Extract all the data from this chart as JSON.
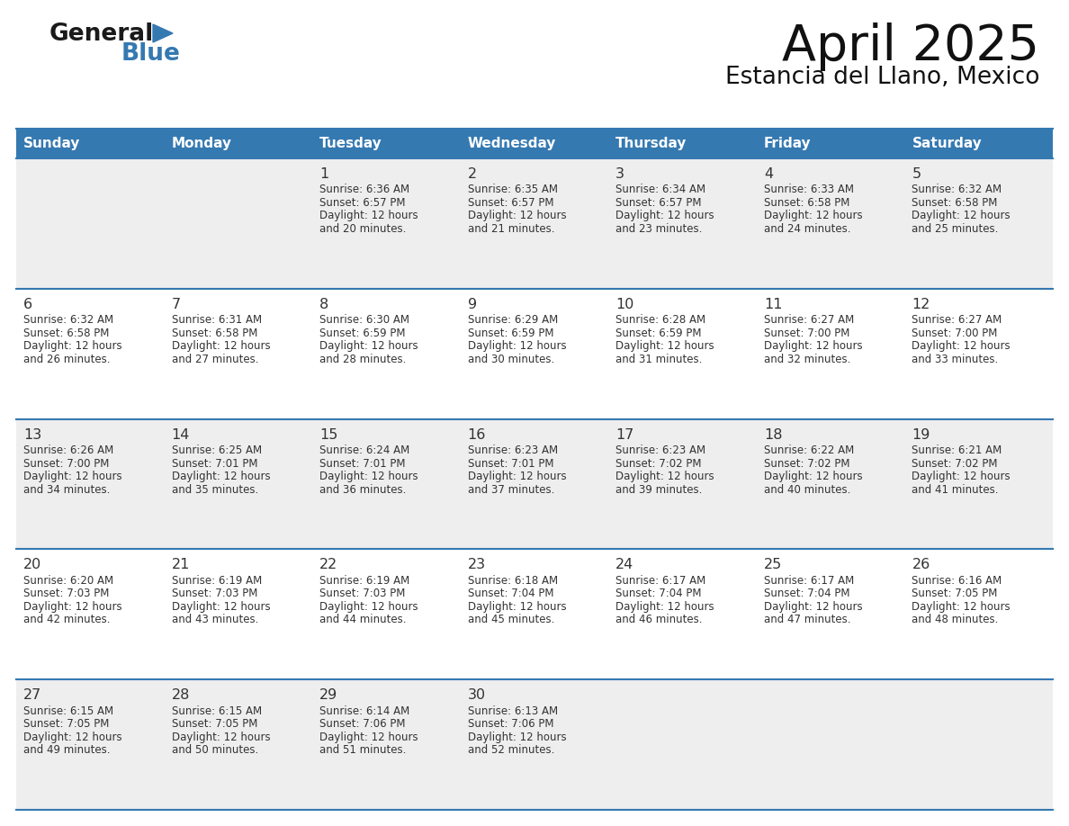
{
  "title": "April 2025",
  "subtitle": "Estancia del Llano, Mexico",
  "header_color": "#3579b1",
  "header_text_color": "#ffffff",
  "cell_bg_row0": "#eeeeee",
  "cell_bg_row1": "#ffffff",
  "border_color": "#3579b1",
  "text_color": "#333333",
  "days_of_week": [
    "Sunday",
    "Monday",
    "Tuesday",
    "Wednesday",
    "Thursday",
    "Friday",
    "Saturday"
  ],
  "weeks": [
    [
      {
        "day": "",
        "sunrise": "",
        "sunset": "",
        "daylight": ""
      },
      {
        "day": "",
        "sunrise": "",
        "sunset": "",
        "daylight": ""
      },
      {
        "day": "1",
        "sunrise": "Sunrise: 6:36 AM",
        "sunset": "Sunset: 6:57 PM",
        "daylight": "Daylight: 12 hours\nand 20 minutes."
      },
      {
        "day": "2",
        "sunrise": "Sunrise: 6:35 AM",
        "sunset": "Sunset: 6:57 PM",
        "daylight": "Daylight: 12 hours\nand 21 minutes."
      },
      {
        "day": "3",
        "sunrise": "Sunrise: 6:34 AM",
        "sunset": "Sunset: 6:57 PM",
        "daylight": "Daylight: 12 hours\nand 23 minutes."
      },
      {
        "day": "4",
        "sunrise": "Sunrise: 6:33 AM",
        "sunset": "Sunset: 6:58 PM",
        "daylight": "Daylight: 12 hours\nand 24 minutes."
      },
      {
        "day": "5",
        "sunrise": "Sunrise: 6:32 AM",
        "sunset": "Sunset: 6:58 PM",
        "daylight": "Daylight: 12 hours\nand 25 minutes."
      }
    ],
    [
      {
        "day": "6",
        "sunrise": "Sunrise: 6:32 AM",
        "sunset": "Sunset: 6:58 PM",
        "daylight": "Daylight: 12 hours\nand 26 minutes."
      },
      {
        "day": "7",
        "sunrise": "Sunrise: 6:31 AM",
        "sunset": "Sunset: 6:58 PM",
        "daylight": "Daylight: 12 hours\nand 27 minutes."
      },
      {
        "day": "8",
        "sunrise": "Sunrise: 6:30 AM",
        "sunset": "Sunset: 6:59 PM",
        "daylight": "Daylight: 12 hours\nand 28 minutes."
      },
      {
        "day": "9",
        "sunrise": "Sunrise: 6:29 AM",
        "sunset": "Sunset: 6:59 PM",
        "daylight": "Daylight: 12 hours\nand 30 minutes."
      },
      {
        "day": "10",
        "sunrise": "Sunrise: 6:28 AM",
        "sunset": "Sunset: 6:59 PM",
        "daylight": "Daylight: 12 hours\nand 31 minutes."
      },
      {
        "day": "11",
        "sunrise": "Sunrise: 6:27 AM",
        "sunset": "Sunset: 7:00 PM",
        "daylight": "Daylight: 12 hours\nand 32 minutes."
      },
      {
        "day": "12",
        "sunrise": "Sunrise: 6:27 AM",
        "sunset": "Sunset: 7:00 PM",
        "daylight": "Daylight: 12 hours\nand 33 minutes."
      }
    ],
    [
      {
        "day": "13",
        "sunrise": "Sunrise: 6:26 AM",
        "sunset": "Sunset: 7:00 PM",
        "daylight": "Daylight: 12 hours\nand 34 minutes."
      },
      {
        "day": "14",
        "sunrise": "Sunrise: 6:25 AM",
        "sunset": "Sunset: 7:01 PM",
        "daylight": "Daylight: 12 hours\nand 35 minutes."
      },
      {
        "day": "15",
        "sunrise": "Sunrise: 6:24 AM",
        "sunset": "Sunset: 7:01 PM",
        "daylight": "Daylight: 12 hours\nand 36 minutes."
      },
      {
        "day": "16",
        "sunrise": "Sunrise: 6:23 AM",
        "sunset": "Sunset: 7:01 PM",
        "daylight": "Daylight: 12 hours\nand 37 minutes."
      },
      {
        "day": "17",
        "sunrise": "Sunrise: 6:23 AM",
        "sunset": "Sunset: 7:02 PM",
        "daylight": "Daylight: 12 hours\nand 39 minutes."
      },
      {
        "day": "18",
        "sunrise": "Sunrise: 6:22 AM",
        "sunset": "Sunset: 7:02 PM",
        "daylight": "Daylight: 12 hours\nand 40 minutes."
      },
      {
        "day": "19",
        "sunrise": "Sunrise: 6:21 AM",
        "sunset": "Sunset: 7:02 PM",
        "daylight": "Daylight: 12 hours\nand 41 minutes."
      }
    ],
    [
      {
        "day": "20",
        "sunrise": "Sunrise: 6:20 AM",
        "sunset": "Sunset: 7:03 PM",
        "daylight": "Daylight: 12 hours\nand 42 minutes."
      },
      {
        "day": "21",
        "sunrise": "Sunrise: 6:19 AM",
        "sunset": "Sunset: 7:03 PM",
        "daylight": "Daylight: 12 hours\nand 43 minutes."
      },
      {
        "day": "22",
        "sunrise": "Sunrise: 6:19 AM",
        "sunset": "Sunset: 7:03 PM",
        "daylight": "Daylight: 12 hours\nand 44 minutes."
      },
      {
        "day": "23",
        "sunrise": "Sunrise: 6:18 AM",
        "sunset": "Sunset: 7:04 PM",
        "daylight": "Daylight: 12 hours\nand 45 minutes."
      },
      {
        "day": "24",
        "sunrise": "Sunrise: 6:17 AM",
        "sunset": "Sunset: 7:04 PM",
        "daylight": "Daylight: 12 hours\nand 46 minutes."
      },
      {
        "day": "25",
        "sunrise": "Sunrise: 6:17 AM",
        "sunset": "Sunset: 7:04 PM",
        "daylight": "Daylight: 12 hours\nand 47 minutes."
      },
      {
        "day": "26",
        "sunrise": "Sunrise: 6:16 AM",
        "sunset": "Sunset: 7:05 PM",
        "daylight": "Daylight: 12 hours\nand 48 minutes."
      }
    ],
    [
      {
        "day": "27",
        "sunrise": "Sunrise: 6:15 AM",
        "sunset": "Sunset: 7:05 PM",
        "daylight": "Daylight: 12 hours\nand 49 minutes."
      },
      {
        "day": "28",
        "sunrise": "Sunrise: 6:15 AM",
        "sunset": "Sunset: 7:05 PM",
        "daylight": "Daylight: 12 hours\nand 50 minutes."
      },
      {
        "day": "29",
        "sunrise": "Sunrise: 6:14 AM",
        "sunset": "Sunset: 7:06 PM",
        "daylight": "Daylight: 12 hours\nand 51 minutes."
      },
      {
        "day": "30",
        "sunrise": "Sunrise: 6:13 AM",
        "sunset": "Sunset: 7:06 PM",
        "daylight": "Daylight: 12 hours\nand 52 minutes."
      },
      {
        "day": "",
        "sunrise": "",
        "sunset": "",
        "daylight": ""
      },
      {
        "day": "",
        "sunrise": "",
        "sunset": "",
        "daylight": ""
      },
      {
        "day": "",
        "sunrise": "",
        "sunset": "",
        "daylight": ""
      }
    ]
  ]
}
